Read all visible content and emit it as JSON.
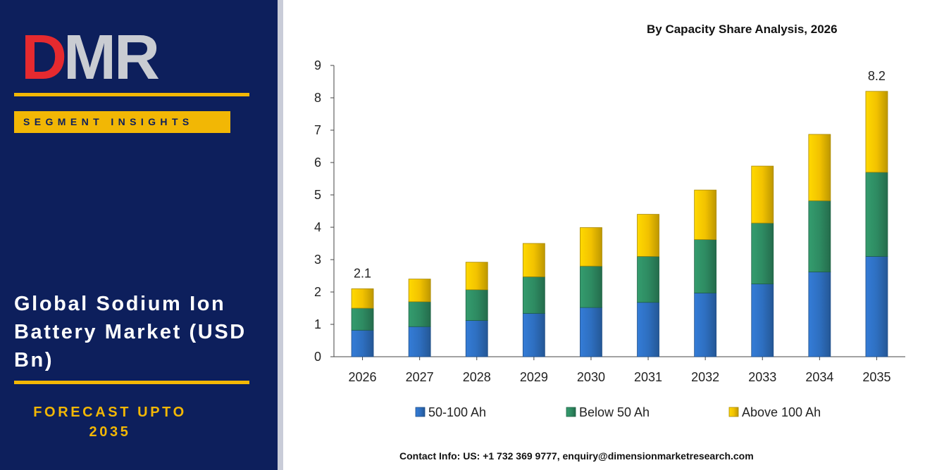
{
  "logo": {
    "letters": [
      "D",
      "M",
      "R"
    ],
    "colors": {
      "d": "#e52a2f",
      "m": "#c9ccd2",
      "r": "#c9ccd2"
    }
  },
  "left_panel": {
    "segment_label": "SEGMENT INSIGHTS",
    "title_lines": [
      "Global Sodium Ion",
      "Battery Market (USD",
      "Bn)"
    ],
    "forecast_lines": [
      "FORECAST UPTO",
      "2035"
    ],
    "background_color": "#0d1f5c",
    "accent_color": "#f2b705"
  },
  "chart_data": {
    "type": "bar",
    "stacked": true,
    "title": "By Capacity Share Analysis, 2026",
    "xlabel": "",
    "ylabel": "",
    "categories": [
      "2026",
      "2027",
      "2028",
      "2029",
      "2030",
      "2031",
      "2032",
      "2033",
      "2034",
      "2035"
    ],
    "series": [
      {
        "name": "50-100 Ah",
        "color": "#2e6fc0",
        "values": [
          0.82,
          0.93,
          1.12,
          1.34,
          1.52,
          1.68,
          1.97,
          2.25,
          2.62,
          3.1
        ]
      },
      {
        "name": "Below 50 Ah",
        "color": "#2e8b62",
        "values": [
          0.68,
          0.77,
          0.95,
          1.13,
          1.28,
          1.42,
          1.65,
          1.88,
          2.2,
          2.6
        ]
      },
      {
        "name": "Above 100 Ah",
        "color": "#f2c200",
        "values": [
          0.6,
          0.7,
          0.85,
          1.03,
          1.19,
          1.3,
          1.53,
          1.76,
          2.05,
          2.5
        ]
      }
    ],
    "totals_labels": [
      {
        "category": "2026",
        "text": "2.1"
      },
      {
        "category": "2035",
        "text": "8.2"
      }
    ],
    "ylim": [
      0,
      9
    ],
    "yticks": [
      "0",
      "1",
      "2",
      "3",
      "4",
      "5",
      "6",
      "7",
      "8",
      "9"
    ],
    "grid": false,
    "legend_position": "bottom"
  },
  "footer": {
    "contact": "Contact Info: US: +1 732 369 9777, enquiry@dimensionmarketresearch.com"
  }
}
